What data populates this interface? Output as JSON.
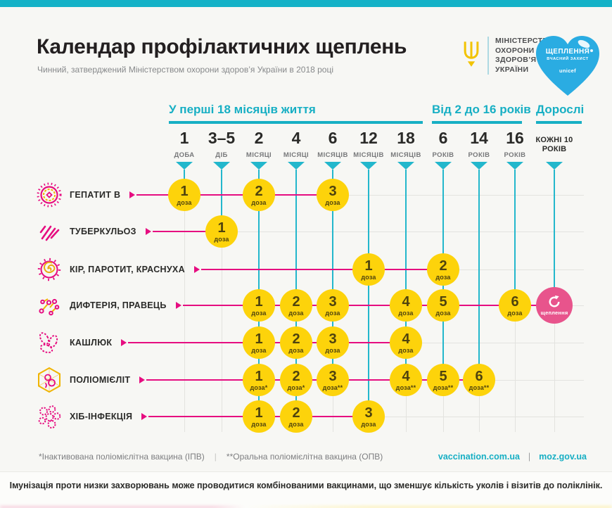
{
  "page": {
    "title": "Календар профілактичних щеплень",
    "subtitle": "Чинний, затверджений Міністерством охорони здоров’я України в 2018 році",
    "bottom_note": "Імунізація проти низки захворювань може проводитися комбінованими вакцинами, що зменшує кількість уколів і візитів до поліклінік."
  },
  "ministry": {
    "name_lines": [
      "МІНІСТЕРСТВО",
      "ОХОРОНИ",
      "ЗДОРОВ’Я",
      "УКРАЇНИ"
    ]
  },
  "heart_badge": {
    "title": "ЩЕПЛЕННЯ",
    "subtitle": "ВЧАСНИЙ ЗАХИСТ",
    "brand": "unicef"
  },
  "sections": [
    {
      "label": "У перші 18 місяців життя"
    },
    {
      "label": "Від 2 до 16 років"
    },
    {
      "label": "Дорослі"
    }
  ],
  "columns": [
    {
      "num": "1",
      "unit": "ДОБА"
    },
    {
      "num": "3–5",
      "unit": "ДІБ"
    },
    {
      "num": "2",
      "unit": "МІСЯЦІ"
    },
    {
      "num": "4",
      "unit": "МІСЯЦІ"
    },
    {
      "num": "6",
      "unit": "МІСЯЦІВ"
    },
    {
      "num": "12",
      "unit": "МІСЯЦІВ"
    },
    {
      "num": "18",
      "unit": "МІСЯЦІВ"
    },
    {
      "num": "6",
      "unit": "РОКІВ"
    },
    {
      "num": "14",
      "unit": "РОКІВ"
    },
    {
      "num": "16",
      "unit": "РОКІВ"
    },
    {
      "num": "",
      "unit": "КОЖНІ 10 РОКІВ",
      "emphasis": true
    }
  ],
  "rows": [
    {
      "label": "ГЕПАТИТ В",
      "icon": "hepatitis-b-virus-icon",
      "doses": [
        {
          "col": 0,
          "num": "1",
          "unit": "доза"
        },
        {
          "col": 2,
          "num": "2",
          "unit": "доза"
        },
        {
          "col": 4,
          "num": "3",
          "unit": "доза"
        }
      ]
    },
    {
      "label": "ТУБЕРКУЛЬОЗ",
      "icon": "tuberculosis-bacteria-icon",
      "doses": [
        {
          "col": 1,
          "num": "1",
          "unit": "доза"
        }
      ]
    },
    {
      "label": "КІР, ПАРОТИТ, КРАСНУХА",
      "icon": "measles-virus-icon",
      "doses": [
        {
          "col": 5,
          "num": "1",
          "unit": "доза"
        },
        {
          "col": 7,
          "num": "2",
          "unit": "доза"
        }
      ]
    },
    {
      "label": "ДИФТЕРІЯ, ПРАВЕЦЬ",
      "icon": "diphtheria-bacteria-icon",
      "doses": [
        {
          "col": 2,
          "num": "1",
          "unit": "доза"
        },
        {
          "col": 3,
          "num": "2",
          "unit": "доза"
        },
        {
          "col": 4,
          "num": "3",
          "unit": "доза"
        },
        {
          "col": 6,
          "num": "4",
          "unit": "доза"
        },
        {
          "col": 7,
          "num": "5",
          "unit": "доза"
        },
        {
          "col": 9,
          "num": "6",
          "unit": "доза"
        }
      ],
      "booster": {
        "col": 10,
        "label": "щеплення"
      }
    },
    {
      "label": "КАШЛЮК",
      "icon": "pertussis-bacteria-icon",
      "doses": [
        {
          "col": 2,
          "num": "1",
          "unit": "доза"
        },
        {
          "col": 3,
          "num": "2",
          "unit": "доза"
        },
        {
          "col": 4,
          "num": "3",
          "unit": "доза"
        },
        {
          "col": 6,
          "num": "4",
          "unit": "доза"
        }
      ]
    },
    {
      "label": "ПОЛІОМІЄЛІТ",
      "icon": "polio-virus-icon",
      "doses": [
        {
          "col": 2,
          "num": "1",
          "unit": "доза*"
        },
        {
          "col": 3,
          "num": "2",
          "unit": "доза*"
        },
        {
          "col": 4,
          "num": "3",
          "unit": "доза**"
        },
        {
          "col": 6,
          "num": "4",
          "unit": "доза**"
        },
        {
          "col": 7,
          "num": "5",
          "unit": "доза**"
        },
        {
          "col": 8,
          "num": "6",
          "unit": "доза**"
        }
      ]
    },
    {
      "label": "ХІБ-ІНФЕКЦІЯ",
      "icon": "hib-bacteria-icon",
      "doses": [
        {
          "col": 2,
          "num": "1",
          "unit": "доза"
        },
        {
          "col": 3,
          "num": "2",
          "unit": "доза"
        },
        {
          "col": 5,
          "num": "3",
          "unit": "доза"
        }
      ]
    }
  ],
  "footnotes": {
    "ipv": "*Інактивована поліомієлітна вакцина (ІПВ)",
    "separator": "|",
    "opv": "**Оральна поліомієлітна вакцина (ОПВ)"
  },
  "links": {
    "vaccination": "vaccination.com.ua",
    "separator": "|",
    "moz": "moz.gov.ua"
  },
  "colors": {
    "teal": "#17afc4",
    "magenta": "#e60d80",
    "dose_yellow": "#fdd30b",
    "booster_pink": "#e8548c",
    "heart_blue": "#2aace2",
    "trident_gold": "#f2c300"
  }
}
